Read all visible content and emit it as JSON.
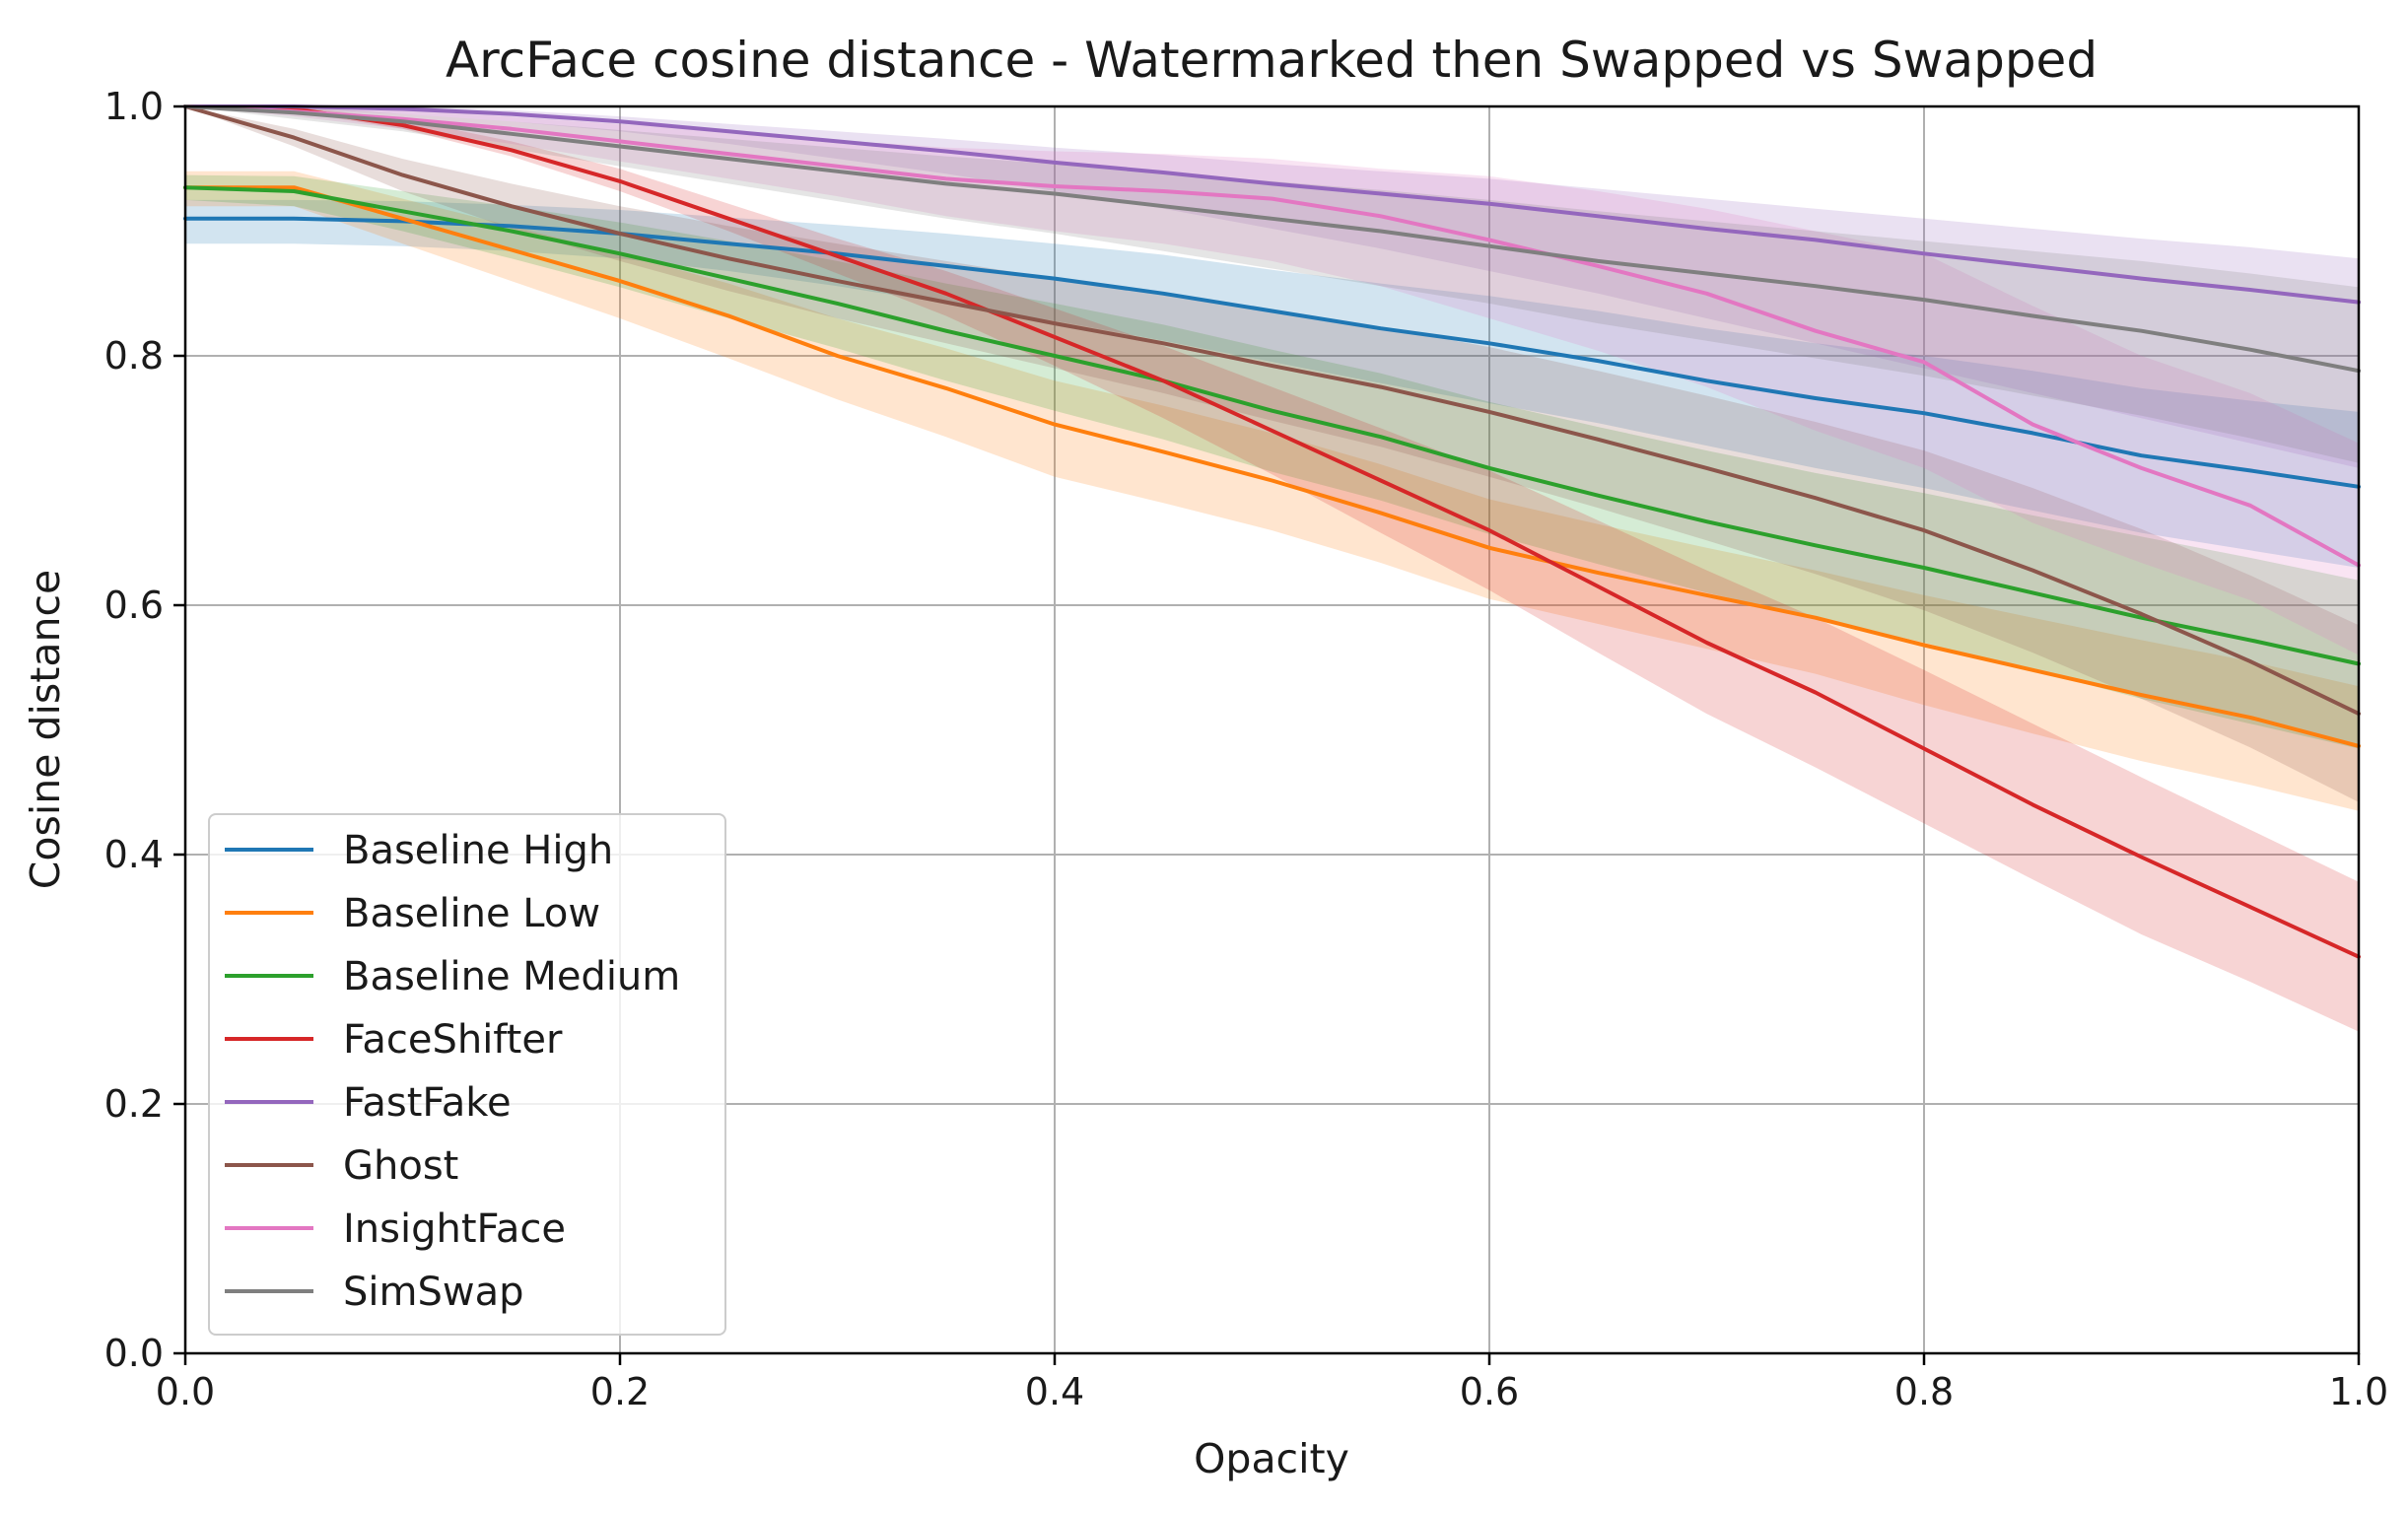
{
  "chart_data": {
    "type": "line",
    "title": "ArcFace cosine distance - Watermarked then Swapped vs Swapped",
    "xlabel": "Opacity",
    "ylabel": "Cosine distance",
    "xlim": [
      0.0,
      1.0
    ],
    "ylim": [
      0.0,
      1.0
    ],
    "xticks": [
      0.0,
      0.2,
      0.4,
      0.6,
      0.8,
      1.0
    ],
    "yticks": [
      0.0,
      0.2,
      0.4,
      0.6,
      0.8,
      1.0
    ],
    "xtick_labels": [
      "0.0",
      "0.2",
      "0.4",
      "0.6",
      "0.8",
      "1.0"
    ],
    "ytick_labels": [
      "0.0",
      "0.2",
      "0.4",
      "0.6",
      "0.8",
      "1.0"
    ],
    "grid": true,
    "legend_position": "lower-left",
    "x": [
      0.0,
      0.05,
      0.1,
      0.15,
      0.2,
      0.25,
      0.3,
      0.35,
      0.4,
      0.45,
      0.5,
      0.55,
      0.6,
      0.65,
      0.7,
      0.75,
      0.8,
      0.85,
      0.9,
      0.95,
      1.0
    ],
    "series": [
      {
        "name": "Baseline High",
        "color": "#1f77b4",
        "values": [
          0.91,
          0.91,
          0.908,
          0.904,
          0.898,
          0.89,
          0.882,
          0.872,
          0.862,
          0.85,
          0.836,
          0.822,
          0.81,
          0.796,
          0.78,
          0.766,
          0.754,
          0.738,
          0.72,
          0.708,
          0.695
        ],
        "lower": [
          0.89,
          0.89,
          0.888,
          0.884,
          0.878,
          0.868,
          0.856,
          0.842,
          0.828,
          0.812,
          0.795,
          0.778,
          0.762,
          0.746,
          0.728,
          0.71,
          0.694,
          0.676,
          0.658,
          0.644,
          0.63
        ],
        "upper": [
          0.925,
          0.925,
          0.924,
          0.921,
          0.917,
          0.911,
          0.905,
          0.898,
          0.89,
          0.881,
          0.869,
          0.858,
          0.848,
          0.836,
          0.822,
          0.81,
          0.8,
          0.788,
          0.774,
          0.764,
          0.755
        ]
      },
      {
        "name": "Baseline Low",
        "color": "#ff7f0e",
        "values": [
          0.935,
          0.935,
          0.91,
          0.885,
          0.86,
          0.832,
          0.8,
          0.774,
          0.745,
          0.723,
          0.7,
          0.674,
          0.646,
          0.626,
          0.608,
          0.59,
          0.568,
          0.548,
          0.528,
          0.51,
          0.487
        ],
        "lower": [
          0.92,
          0.92,
          0.89,
          0.86,
          0.83,
          0.798,
          0.765,
          0.735,
          0.703,
          0.682,
          0.66,
          0.634,
          0.605,
          0.585,
          0.565,
          0.545,
          0.52,
          0.497,
          0.475,
          0.456,
          0.435
        ],
        "upper": [
          0.948,
          0.948,
          0.926,
          0.904,
          0.882,
          0.858,
          0.83,
          0.806,
          0.78,
          0.76,
          0.738,
          0.713,
          0.685,
          0.665,
          0.646,
          0.628,
          0.608,
          0.59,
          0.572,
          0.555,
          0.535
        ]
      },
      {
        "name": "Baseline Medium",
        "color": "#2ca02c",
        "values": [
          0.935,
          0.932,
          0.916,
          0.9,
          0.882,
          0.862,
          0.842,
          0.82,
          0.8,
          0.78,
          0.756,
          0.735,
          0.71,
          0.688,
          0.667,
          0.648,
          0.63,
          0.61,
          0.59,
          0.572,
          0.553
        ],
        "lower": [
          0.925,
          0.92,
          0.9,
          0.878,
          0.855,
          0.83,
          0.806,
          0.78,
          0.756,
          0.733,
          0.707,
          0.684,
          0.657,
          0.633,
          0.61,
          0.59,
          0.57,
          0.548,
          0.525,
          0.505,
          0.485
        ],
        "upper": [
          0.945,
          0.944,
          0.932,
          0.92,
          0.907,
          0.892,
          0.876,
          0.858,
          0.842,
          0.825,
          0.805,
          0.786,
          0.763,
          0.743,
          0.724,
          0.706,
          0.69,
          0.672,
          0.655,
          0.638,
          0.62
        ]
      },
      {
        "name": "FaceShifter",
        "color": "#d62728",
        "values": [
          1.0,
          0.998,
          0.985,
          0.965,
          0.94,
          0.91,
          0.88,
          0.85,
          0.815,
          0.78,
          0.74,
          0.7,
          0.66,
          0.615,
          0.57,
          0.53,
          0.485,
          0.44,
          0.398,
          0.358,
          0.318
        ],
        "lower": [
          1.0,
          0.996,
          0.982,
          0.96,
          0.932,
          0.9,
          0.866,
          0.832,
          0.792,
          0.75,
          0.705,
          0.658,
          0.612,
          0.562,
          0.513,
          0.47,
          0.425,
          0.38,
          0.336,
          0.298,
          0.258
        ],
        "upper": [
          1.0,
          1.0,
          0.99,
          0.972,
          0.95,
          0.922,
          0.894,
          0.868,
          0.838,
          0.808,
          0.775,
          0.742,
          0.708,
          0.668,
          0.628,
          0.59,
          0.548,
          0.505,
          0.462,
          0.42,
          0.378
        ]
      },
      {
        "name": "FastFake",
        "color": "#9467bd",
        "values": [
          1.0,
          1.0,
          0.998,
          0.994,
          0.988,
          0.98,
          0.972,
          0.964,
          0.955,
          0.947,
          0.938,
          0.93,
          0.922,
          0.912,
          0.902,
          0.893,
          0.882,
          0.872,
          0.862,
          0.853,
          0.843
        ],
        "lower": [
          1.0,
          0.998,
          0.994,
          0.988,
          0.98,
          0.97,
          0.958,
          0.946,
          0.932,
          0.918,
          0.902,
          0.886,
          0.868,
          0.85,
          0.83,
          0.81,
          0.79,
          0.77,
          0.75,
          0.73,
          0.71
        ],
        "upper": [
          1.0,
          1.0,
          1.0,
          0.997,
          0.992,
          0.986,
          0.98,
          0.974,
          0.967,
          0.961,
          0.954,
          0.948,
          0.942,
          0.934,
          0.926,
          0.918,
          0.91,
          0.902,
          0.894,
          0.887,
          0.878
        ]
      },
      {
        "name": "Ghost",
        "color": "#8c564b",
        "values": [
          1.0,
          0.975,
          0.945,
          0.92,
          0.898,
          0.878,
          0.86,
          0.843,
          0.826,
          0.81,
          0.792,
          0.775,
          0.755,
          0.733,
          0.71,
          0.686,
          0.66,
          0.628,
          0.593,
          0.555,
          0.513
        ],
        "lower": [
          1.0,
          0.968,
          0.932,
          0.902,
          0.876,
          0.852,
          0.83,
          0.81,
          0.79,
          0.77,
          0.748,
          0.727,
          0.703,
          0.678,
          0.652,
          0.625,
          0.596,
          0.562,
          0.525,
          0.486,
          0.442
        ],
        "upper": [
          1.0,
          0.982,
          0.958,
          0.938,
          0.92,
          0.904,
          0.89,
          0.876,
          0.862,
          0.85,
          0.836,
          0.823,
          0.807,
          0.788,
          0.768,
          0.747,
          0.724,
          0.694,
          0.661,
          0.624,
          0.584
        ]
      },
      {
        "name": "InsightFace",
        "color": "#e377c2",
        "values": [
          1.0,
          0.996,
          0.99,
          0.982,
          0.972,
          0.962,
          0.952,
          0.942,
          0.936,
          0.932,
          0.926,
          0.912,
          0.893,
          0.872,
          0.85,
          0.82,
          0.795,
          0.745,
          0.71,
          0.68,
          0.632
        ],
        "lower": [
          1.0,
          0.992,
          0.982,
          0.97,
          0.956,
          0.942,
          0.928,
          0.912,
          0.9,
          0.89,
          0.876,
          0.856,
          0.83,
          0.804,
          0.775,
          0.74,
          0.71,
          0.666,
          0.634,
          0.604,
          0.56
        ],
        "upper": [
          1.0,
          1.0,
          0.997,
          0.992,
          0.986,
          0.98,
          0.973,
          0.967,
          0.964,
          0.962,
          0.958,
          0.95,
          0.944,
          0.932,
          0.918,
          0.9,
          0.882,
          0.84,
          0.8,
          0.77,
          0.73
        ]
      },
      {
        "name": "SimSwap",
        "color": "#7f7f7f",
        "values": [
          1.0,
          0.995,
          0.988,
          0.978,
          0.968,
          0.958,
          0.948,
          0.938,
          0.93,
          0.92,
          0.91,
          0.9,
          0.888,
          0.876,
          0.866,
          0.856,
          0.845,
          0.832,
          0.82,
          0.805,
          0.788
        ],
        "lower": [
          1.0,
          0.99,
          0.98,
          0.966,
          0.952,
          0.938,
          0.924,
          0.91,
          0.898,
          0.884,
          0.87,
          0.856,
          0.842,
          0.826,
          0.812,
          0.798,
          0.784,
          0.768,
          0.752,
          0.734,
          0.714
        ],
        "upper": [
          1.0,
          1.0,
          0.994,
          0.988,
          0.981,
          0.974,
          0.967,
          0.96,
          0.954,
          0.947,
          0.94,
          0.933,
          0.925,
          0.916,
          0.908,
          0.9,
          0.892,
          0.884,
          0.876,
          0.866,
          0.855
        ]
      }
    ]
  }
}
